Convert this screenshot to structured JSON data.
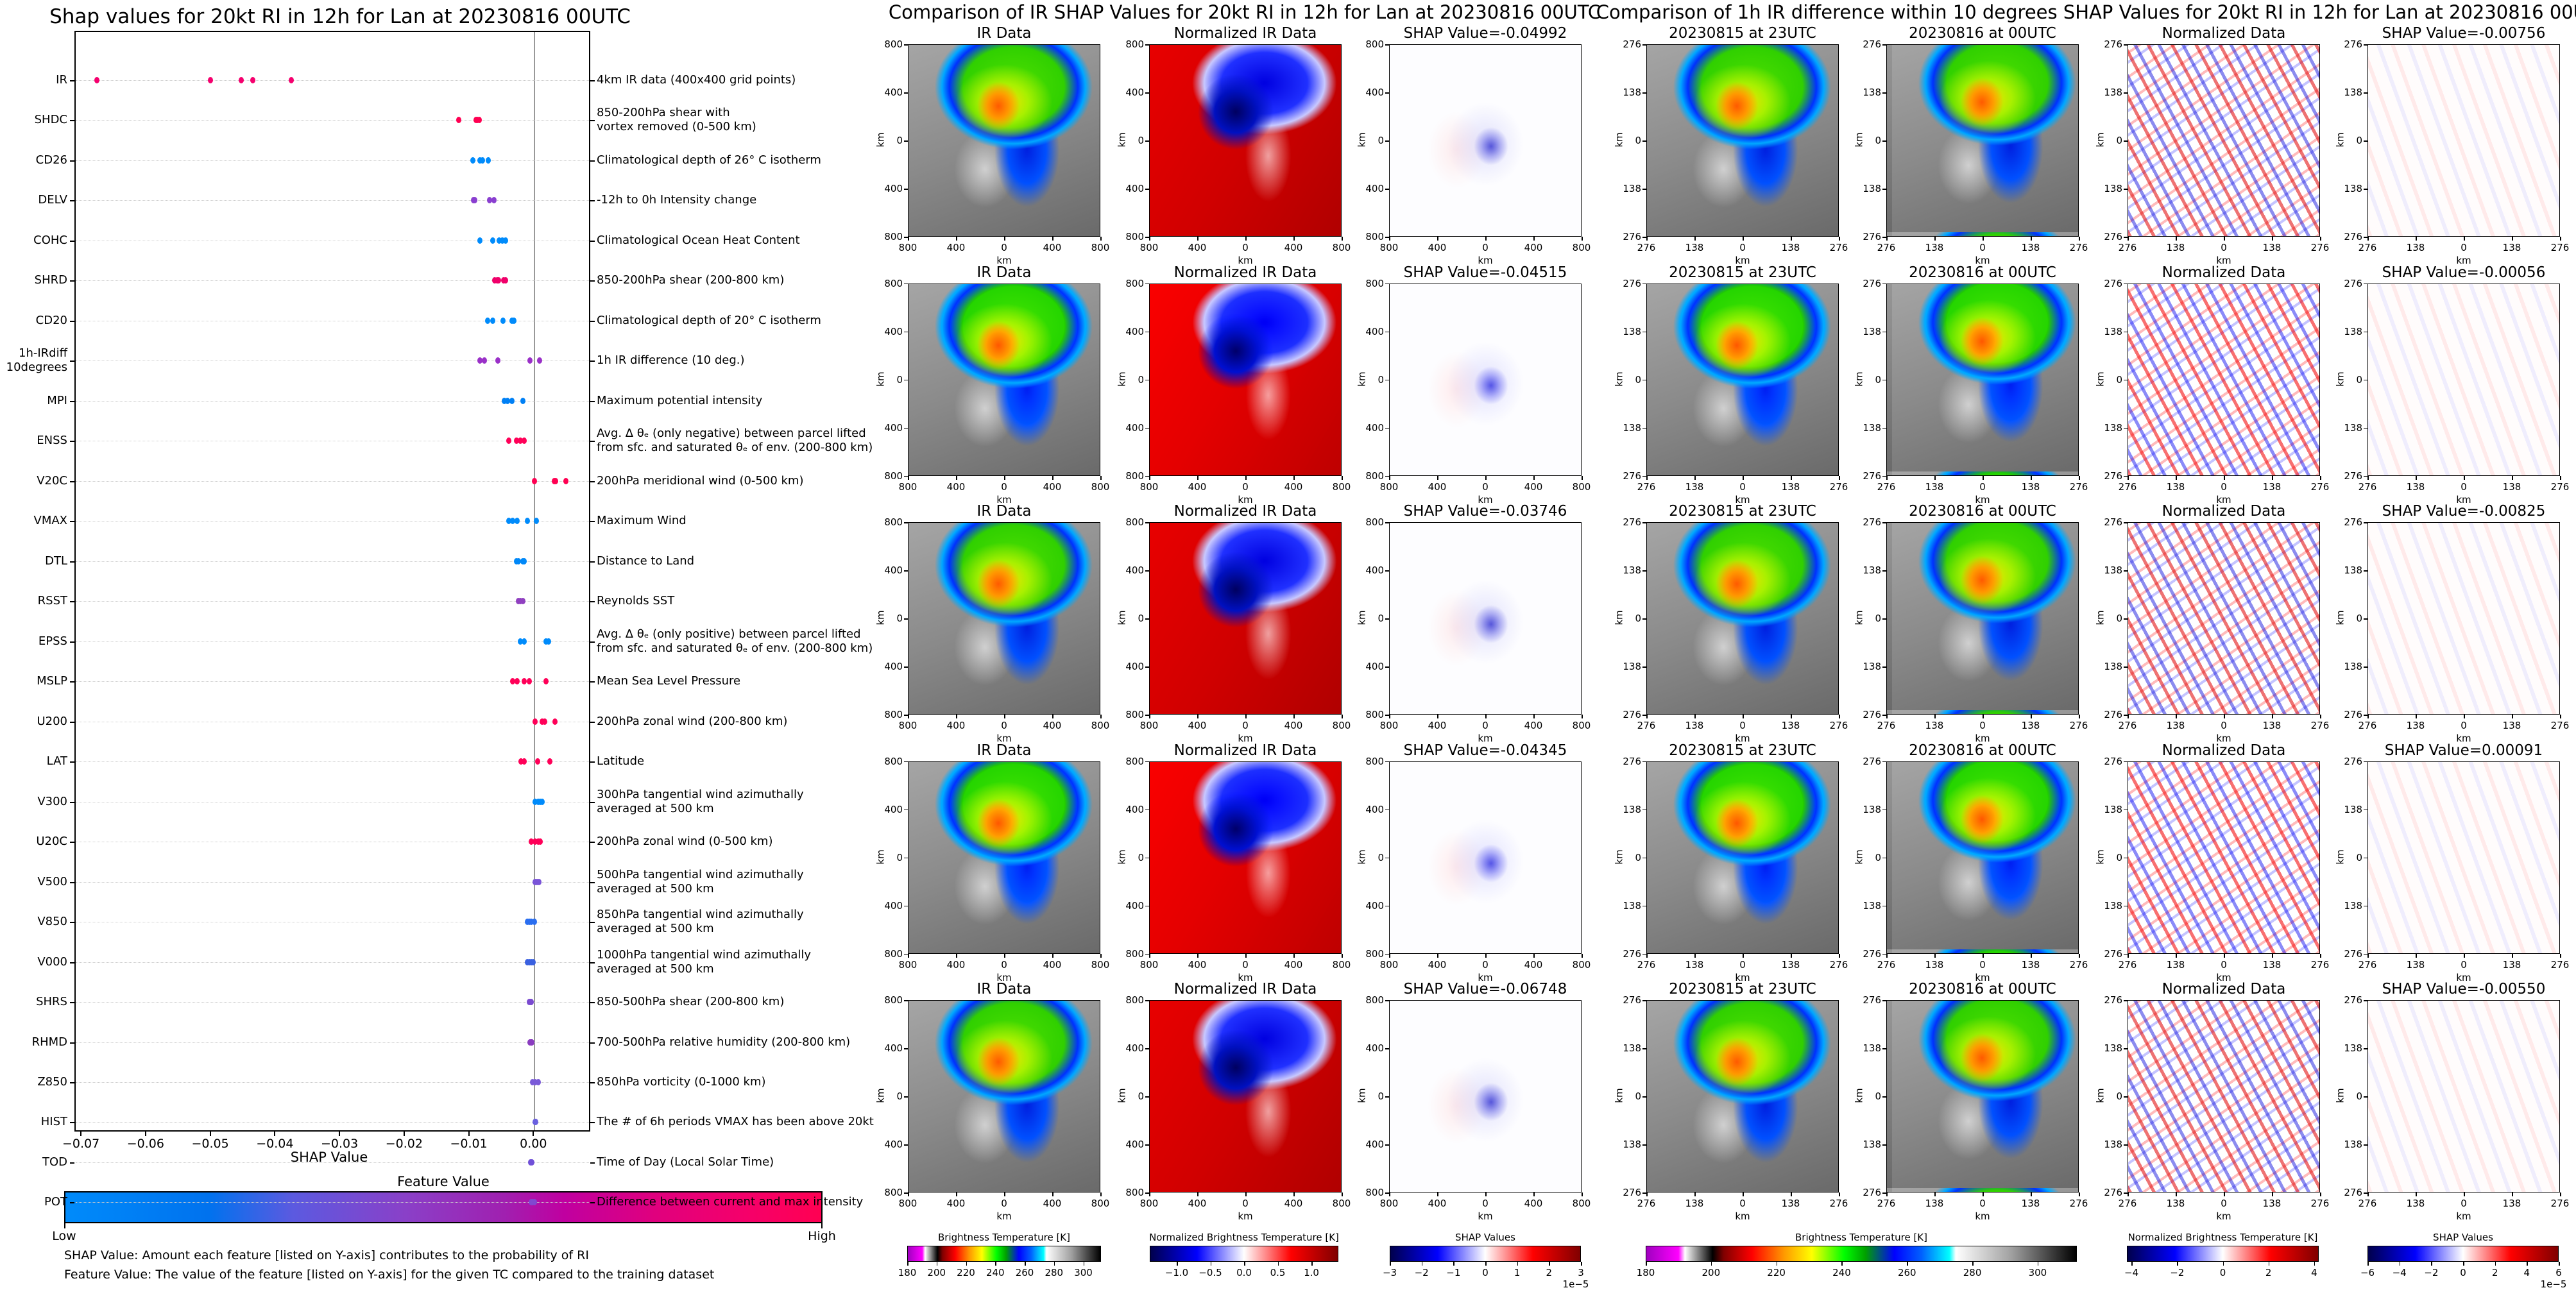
{
  "shap_summary": {
    "title": "Shap values for 20kt RI in 12h for Lan at 20230816 00UTC",
    "xlabel": "SHAP Value",
    "colorbar_label": "Feature Value",
    "colorbar_low": "Low",
    "colorbar_high": "High",
    "note_shap": "SHAP Value: Amount each feature [listed on Y-axis] contributes to the probability of RI",
    "note_feature": "Feature Value: The value of the feature [listed on Y-axis] for the given TC compared to the training dataset"
  },
  "chart_data": {
    "type": "scatter",
    "title": "Shap values for 20kt RI in 12h for Lan at 20230816 00UTC",
    "xlabel": "SHAP Value",
    "xlim": [
      -0.071,
      0.0088
    ],
    "xticks": [
      -0.07,
      -0.06,
      -0.05,
      -0.04,
      -0.03,
      -0.02,
      -0.01,
      0.0
    ],
    "xtick_labels": [
      "−0.07",
      "−0.06",
      "−0.05",
      "−0.04",
      "−0.03",
      "−0.02",
      "−0.01",
      "0.00"
    ],
    "grid": "horizontal dotted",
    "features": [
      {
        "name": "IR",
        "desc": "4km IR data (400x400 grid points)",
        "color": "#f5006e",
        "values": [
          -0.06748,
          -0.04992,
          -0.04515,
          -0.04345,
          -0.03746
        ]
      },
      {
        "name": "SHDC",
        "desc": "850-200hPa shear with\nvortex removed (0-500 km)",
        "color": "#ff0052",
        "values": [
          -0.0115,
          -0.0089,
          -0.0087,
          -0.0084
        ]
      },
      {
        "name": "CD26",
        "desc": "Climatological depth of 26° C isotherm",
        "color": "#008bfb",
        "values": [
          -0.0094,
          -0.0083,
          -0.0079,
          -0.007
        ]
      },
      {
        "name": "DELV",
        "desc": "-12h to 0h Intensity change",
        "color": "#8a3fd0",
        "values": [
          -0.0093,
          -0.0091,
          -0.0068,
          -0.0061
        ]
      },
      {
        "name": "COHC",
        "desc": "Climatological Ocean Heat Content",
        "color": "#008bfb",
        "values": [
          -0.0083,
          -0.0063,
          -0.0053,
          -0.0048,
          -0.0043
        ]
      },
      {
        "name": "SHRD",
        "desc": "850-200hPa shear (200-800 km)",
        "color": "#f0006a",
        "values": [
          -0.006,
          -0.0056,
          -0.0054,
          -0.0046,
          -0.0043
        ]
      },
      {
        "name": "CD20",
        "desc": "Climatological depth of 20° C isotherm",
        "color": "#008bfb",
        "values": [
          -0.0071,
          -0.0063,
          -0.0047,
          -0.0033,
          -0.003
        ]
      },
      {
        "name": "1h-IRdiff\n10degrees",
        "desc": "1h IR difference (10 deg.)",
        "color": "#9a30c8",
        "values": [
          -0.00825,
          -0.00756,
          -0.0055,
          -0.00056,
          0.00091
        ]
      },
      {
        "name": "MPI",
        "desc": "Maximum potential intensity",
        "color": "#0080f5",
        "values": [
          -0.0045,
          -0.004,
          -0.0033,
          -0.0016
        ]
      },
      {
        "name": "ENSS",
        "desc": "Avg. Δ θₑ (only negative) between parcel lifted\nfrom sfc. and saturated θₑ of env. (200-800 km)",
        "color": "#ff0058",
        "values": [
          -0.0038,
          -0.0026,
          -0.002,
          -0.0014
        ]
      },
      {
        "name": "V20C",
        "desc": "200hPa meridional wind (0-500 km)",
        "color": "#ff0052",
        "values": [
          0.0002,
          0.0032,
          0.0034,
          0.005
        ]
      },
      {
        "name": "VMAX",
        "desc": "Maximum Wind",
        "color": "#008bfb",
        "values": [
          -0.0038,
          -0.0032,
          -0.0025,
          -0.0009,
          0.0005
        ]
      },
      {
        "name": "DTL",
        "desc": "Distance to Land",
        "color": "#0088f8",
        "values": [
          -0.0026,
          -0.0023,
          -0.0016,
          -0.0014
        ]
      },
      {
        "name": "RSST",
        "desc": "Reynolds SST",
        "color": "#9040c0",
        "values": [
          -0.0023,
          -0.002,
          -0.0016
        ]
      },
      {
        "name": "EPSS",
        "desc": "Avg. Δ θₑ (only positive) between parcel lifted\nfrom sfc. and saturated θₑ of env. (200-800 km)",
        "color": "#008bfb",
        "values": [
          -0.002,
          -0.0014,
          0.002,
          0.0023
        ]
      },
      {
        "name": "MSLP",
        "desc": "Mean Sea Level Pressure",
        "color": "#ff0058",
        "values": [
          -0.0032,
          -0.0025,
          -0.0014,
          -0.0006,
          0.002
        ]
      },
      {
        "name": "U200",
        "desc": "200hPa zonal wind (200-800 km)",
        "color": "#ff0058",
        "values": [
          0.0003,
          0.0014,
          0.0018,
          0.0033
        ]
      },
      {
        "name": "LAT",
        "desc": "Latitude",
        "color": "#ff0058",
        "values": [
          -0.0019,
          -0.0014,
          0.0007,
          0.0025
        ]
      },
      {
        "name": "V300",
        "desc": "300hPa tangential wind azimuthally\naveraged at 500 km",
        "color": "#008bfb",
        "values": [
          0.0003,
          0.0008,
          0.0011,
          0.0014
        ]
      },
      {
        "name": "U20C",
        "desc": "200hPa zonal wind (0-500 km)",
        "color": "#ff0058",
        "values": [
          -0.0003,
          0.0003,
          0.0008,
          0.0011
        ]
      },
      {
        "name": "V500",
        "desc": "500hPa tangential wind azimuthally\naveraged at 500 km",
        "color": "#7a55d8",
        "values": [
          0.0003,
          0.0006,
          0.0009
        ]
      },
      {
        "name": "V850",
        "desc": "850hPa tangential wind azimuthally\naveraged at 500 km",
        "color": "#2a6ef0",
        "values": [
          -0.0009,
          -0.0006,
          -0.0003,
          0.0002
        ]
      },
      {
        "name": "V000",
        "desc": "1000hPa tangential wind azimuthally\naveraged at 500 km",
        "color": "#3a60e0",
        "values": [
          -0.0009,
          -0.0006,
          -0.0003,
          0.0
        ]
      },
      {
        "name": "SHRS",
        "desc": "850-500hPa shear (200-800 km)",
        "color": "#7a4ad0",
        "values": [
          -0.0006,
          -0.0004,
          -0.0003
        ]
      },
      {
        "name": "RHMD",
        "desc": "700-500hPa relative humidity (200-800 km)",
        "color": "#8a3cc0",
        "values": [
          -0.0005,
          -0.0003,
          -0.0002
        ]
      },
      {
        "name": "Z850",
        "desc": "850hPa vorticity (0-1000 km)",
        "color": "#7a5ad8",
        "values": [
          -0.0001,
          0.0003,
          0.0008
        ]
      },
      {
        "name": "HIST",
        "desc": "The # of 6h periods VMAX has been above 20kt",
        "color": "#6a60e0",
        "values": [
          0.0003,
          0.0004
        ]
      },
      {
        "name": "TOD",
        "desc": "Time of Day (Local Solar Time)",
        "color": "#7050d8",
        "values": [
          -0.0004,
          -0.0002
        ]
      },
      {
        "name": "POT",
        "desc": "Difference between current and max intensity",
        "color": "#8048d0",
        "values": [
          -0.0003,
          -0.0001,
          0.0002
        ]
      }
    ]
  },
  "ir_comparison": {
    "title": "Comparison of IR SHAP Values for 20kt RI in 12h for Lan at 20230816 00UTC",
    "panel_titles": [
      "IR Data",
      "Normalized IR Data"
    ],
    "ticks": [
      "800",
      "400",
      "0",
      "400",
      "800"
    ],
    "axis_label": "km",
    "shap_titles": [
      "SHAP Value=-0.04992",
      "SHAP Value=-0.04515",
      "SHAP Value=-0.03746",
      "SHAP Value=-0.04345",
      "SHAP Value=-0.06748"
    ]
  },
  "diff_comparison": {
    "title": "Comparison of 1h IR difference within 10 degrees SHAP Values for 20kt RI in 12h for Lan at 20230816 00UTC",
    "panel_titles": [
      "20230815 at 23UTC",
      "20230816 at 00UTC",
      "Normalized Data"
    ],
    "ticks": [
      "276",
      "138",
      "0",
      "138",
      "276"
    ],
    "axis_label": "km",
    "shap_titles": [
      "SHAP Value=-0.00756",
      "SHAP Value=-0.00056",
      "SHAP Value=-0.00825",
      "SHAP Value=0.00091",
      "SHAP Value=-0.00550"
    ]
  },
  "colorbars": [
    {
      "label": "Brightness Temperature [K]",
      "cmap": "cb-bt",
      "range": [
        180,
        312
      ],
      "ticks": [
        180,
        200,
        220,
        240,
        260,
        280,
        300
      ],
      "tick_labels": [
        "180",
        "200",
        "220",
        "240",
        "260",
        "280",
        "300"
      ],
      "offset": null
    },
    {
      "label": "Normalized Brightness Temperature [K]",
      "cmap": "cb-seis",
      "range": [
        -1.4,
        1.4
      ],
      "ticks": [
        -1.0,
        -0.5,
        0.0,
        0.5,
        1.0
      ],
      "tick_labels": [
        "−1.0",
        "−0.5",
        "0.0",
        "0.5",
        "1.0"
      ],
      "offset": null
    },
    {
      "label": "SHAP Values",
      "cmap": "cb-seis",
      "range": [
        -3,
        3
      ],
      "ticks": [
        -3,
        -2,
        -1,
        0,
        1,
        2,
        3
      ],
      "tick_labels": [
        "−3",
        "−2",
        "−1",
        "0",
        "1",
        "2",
        "3"
      ],
      "offset": "1e−5"
    },
    {
      "label": "Brightness Temperature [K]",
      "cmap": "cb-bt",
      "range": [
        180,
        312
      ],
      "ticks": [
        180,
        200,
        220,
        240,
        260,
        280,
        300
      ],
      "tick_labels": [
        "180",
        "200",
        "220",
        "240",
        "260",
        "280",
        "300"
      ],
      "offset": null
    },
    {
      "label": "Normalized Brightness Temperature [K]",
      "cmap": "cb-seis",
      "range": [
        -4.2,
        4.2
      ],
      "ticks": [
        -4,
        -2,
        0,
        2,
        4
      ],
      "tick_labels": [
        "−4",
        "−2",
        "0",
        "2",
        "4"
      ],
      "offset": null
    },
    {
      "label": "SHAP Values",
      "cmap": "cb-seis",
      "range": [
        -6,
        6
      ],
      "ticks": [
        -6,
        -4,
        -2,
        0,
        2,
        4,
        6
      ],
      "tick_labels": [
        "−6",
        "−4",
        "−2",
        "0",
        "2",
        "4",
        "6"
      ],
      "offset": "1e−5"
    }
  ]
}
